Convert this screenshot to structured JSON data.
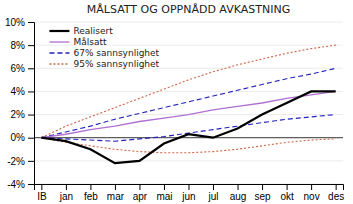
{
  "chart_data": {
    "type": "line",
    "title": "MÅLSATT OG OPPNÅDD AVKASTNING",
    "categories": [
      "IB",
      "jan",
      "feb",
      "mar",
      "apr",
      "mai",
      "jun",
      "jul",
      "aug",
      "sep",
      "okt",
      "nov",
      "des"
    ],
    "ylim": [
      -0.04,
      0.1
    ],
    "yticks": [
      {
        "value": -0.04,
        "label": "-4%"
      },
      {
        "value": -0.02,
        "label": "-2%"
      },
      {
        "value": 0.0,
        "label": "0%"
      },
      {
        "value": 0.02,
        "label": "2%"
      },
      {
        "value": 0.04,
        "label": "4%"
      },
      {
        "value": 0.06,
        "label": "6%"
      },
      {
        "value": 0.08,
        "label": "8%"
      },
      {
        "value": 0.1,
        "label": "10%"
      }
    ],
    "grid": true,
    "legend": "upper left",
    "series": [
      {
        "name": "95% sannsynlighet",
        "color": "#cc6644",
        "line_style": "dotted",
        "values": [
          0.0,
          0.01,
          0.018,
          0.026,
          0.034,
          0.042,
          0.05,
          0.057,
          0.063,
          0.068,
          0.073,
          0.077,
          0.08
        ]
      },
      {
        "color": "#cc6644",
        "line_style": "dotted",
        "values": [
          0.0,
          -0.004,
          -0.007,
          -0.01,
          -0.012,
          -0.013,
          -0.013,
          -0.012,
          -0.01,
          -0.007,
          -0.004,
          -0.002,
          -0.001
        ]
      },
      {
        "name": "67% sannsynlighet",
        "color": "#2222bb",
        "line_style": "dashed",
        "values": [
          0.0,
          0.005,
          0.01,
          0.016,
          0.021,
          0.026,
          0.031,
          0.036,
          0.041,
          0.046,
          0.051,
          0.055,
          0.06
        ]
      },
      {
        "color": "#2222bb",
        "line_style": "dashed",
        "values": [
          0.0,
          -0.001,
          -0.002,
          -0.003,
          -0.001,
          0.001,
          0.004,
          0.007,
          0.01,
          0.013,
          0.016,
          0.018,
          0.02
        ]
      },
      {
        "name": "Målsatt",
        "color": "#b070d0",
        "line_style": "solid",
        "values": [
          0.0,
          0.003,
          0.007,
          0.01,
          0.014,
          0.017,
          0.02,
          0.024,
          0.027,
          0.03,
          0.034,
          0.037,
          0.04
        ]
      },
      {
        "name": "Realisert",
        "color": "#000000",
        "line_style": "solid",
        "values": [
          0.0,
          -0.003,
          -0.01,
          -0.022,
          -0.02,
          -0.005,
          0.003,
          0.0,
          0.008,
          0.02,
          0.03,
          0.04,
          0.04
        ]
      }
    ]
  }
}
